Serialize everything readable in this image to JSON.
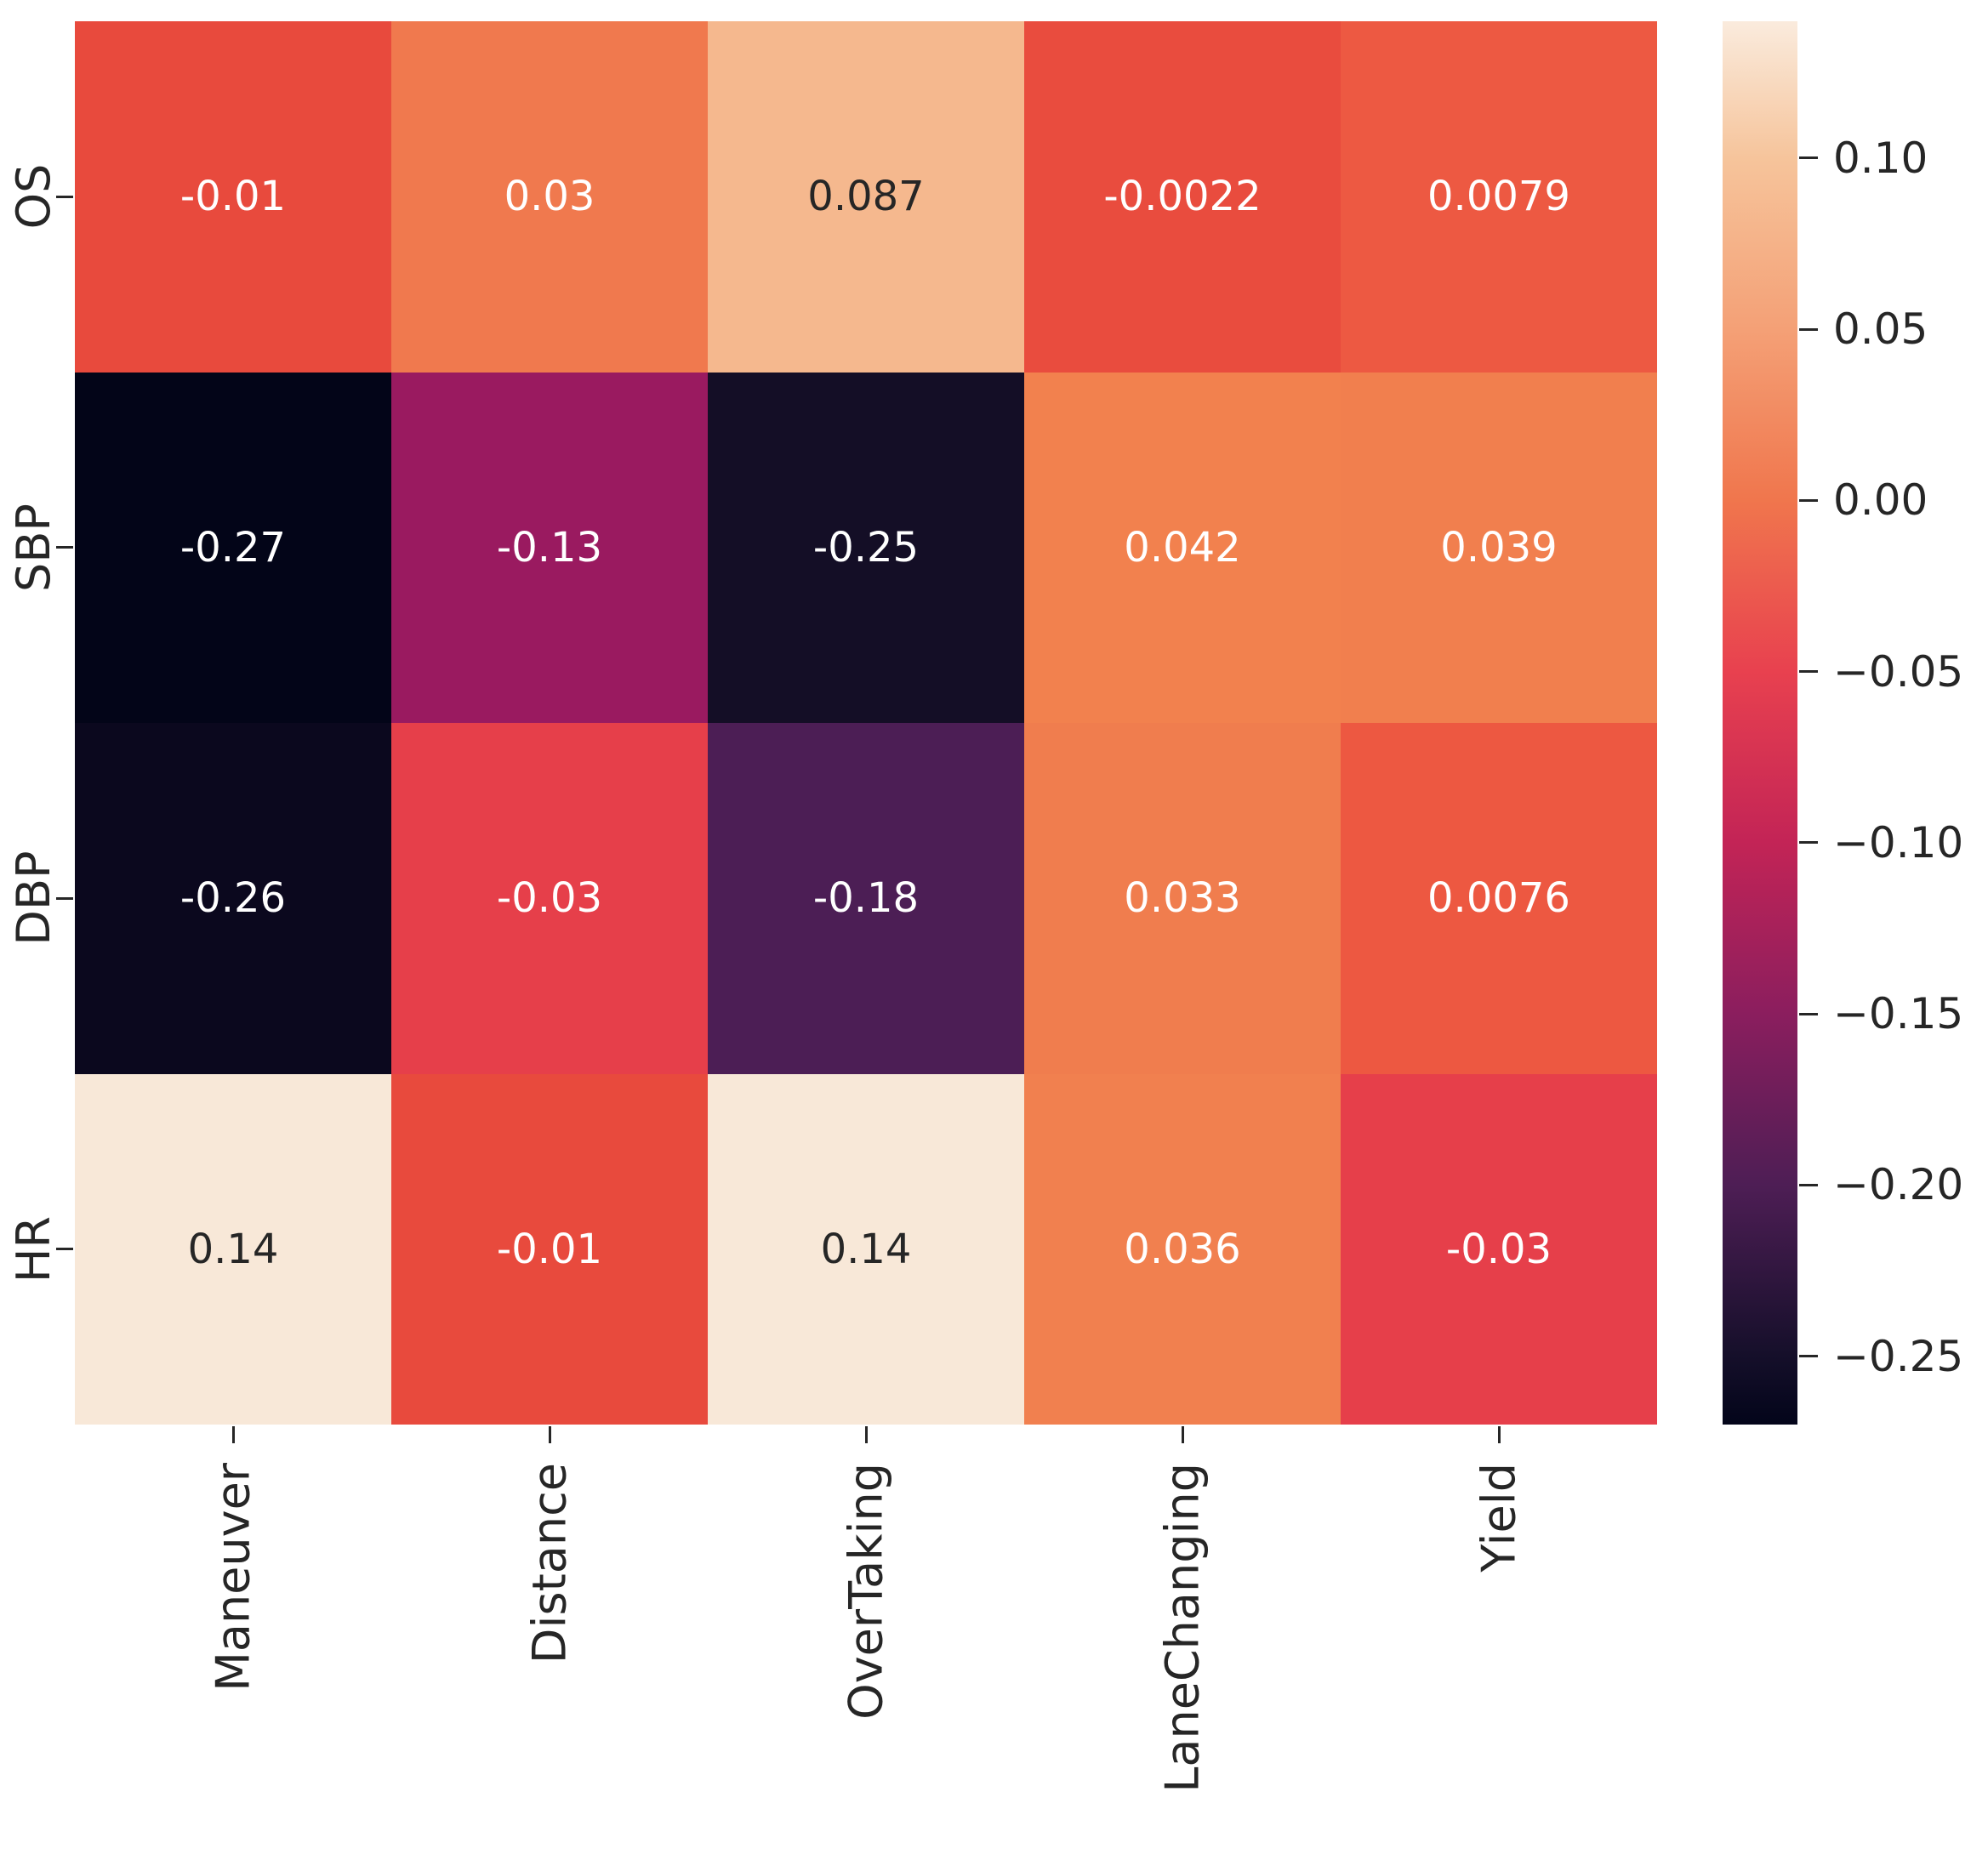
{
  "chart_data": {
    "type": "heatmap",
    "colormap": "rocket",
    "rows": [
      "OS",
      "SBP",
      "DBP",
      "HR"
    ],
    "columns": [
      "Maneuver",
      "Distance",
      "OverTaking",
      "LaneChanging",
      "Yield"
    ],
    "values": [
      [
        -0.01,
        0.03,
        0.087,
        -0.0022,
        0.0079
      ],
      [
        -0.27,
        -0.13,
        -0.25,
        0.042,
        0.039
      ],
      [
        -0.26,
        -0.03,
        -0.18,
        0.033,
        0.0076
      ],
      [
        0.14,
        -0.01,
        0.14,
        0.036,
        -0.03
      ]
    ],
    "cell_labels": [
      [
        "-0.01",
        "0.03",
        "0.087",
        "-0.0022",
        "0.0079"
      ],
      [
        "-0.27",
        "-0.13",
        "-0.25",
        "0.042",
        "0.039"
      ],
      [
        "-0.26",
        "-0.03",
        "-0.18",
        "0.033",
        "0.0076"
      ],
      [
        "0.14",
        "-0.01",
        "0.14",
        "0.036",
        "-0.03"
      ]
    ],
    "cell_colors": [
      [
        "#E84A3D",
        "#F0794E",
        "#F5B88E",
        "#E94C3E",
        "#ED5942"
      ],
      [
        "#030518",
        "#9A1A60",
        "#140E26",
        "#F2814E",
        "#F17F4E"
      ],
      [
        "#0B081E",
        "#E63F4A",
        "#4C1E55",
        "#F07D4E",
        "#ED5841"
      ],
      [
        "#F8E8D8",
        "#E84A3D",
        "#F8E8D8",
        "#F1804F",
        "#E63F4A"
      ]
    ],
    "cell_text_colors": [
      [
        "#FFFFFF",
        "#FFFFFF",
        "#262626",
        "#FFFFFF",
        "#FFFFFF"
      ],
      [
        "#FFFFFF",
        "#FFFFFF",
        "#FFFFFF",
        "#FFFFFF",
        "#FFFFFF"
      ],
      [
        "#FFFFFF",
        "#FFFFFF",
        "#FFFFFF",
        "#FFFFFF",
        "#FFFFFF"
      ],
      [
        "#262626",
        "#FFFFFF",
        "#262626",
        "#FFFFFF",
        "#FFFFFF"
      ]
    ],
    "colorbar": {
      "vmin": -0.27,
      "vmax": 0.14,
      "tick_values": [
        0.1,
        0.05,
        0.0,
        -0.05,
        -0.1,
        -0.15,
        -0.2,
        -0.25
      ],
      "tick_labels": [
        "0.10",
        "0.05",
        "0.00",
        "−0.05",
        "−0.10",
        "−0.15",
        "−0.20",
        "−0.25"
      ],
      "gradient_stops": [
        {
          "pos": 0.0,
          "color": "#FAEBDD"
        },
        {
          "pos": 9.8,
          "color": "#F6C49B"
        },
        {
          "pos": 22.0,
          "color": "#F4A076"
        },
        {
          "pos": 34.1,
          "color": "#F0764D"
        },
        {
          "pos": 46.3,
          "color": "#E8414F"
        },
        {
          "pos": 58.5,
          "color": "#C32456"
        },
        {
          "pos": 70.7,
          "color": "#8B1E5E"
        },
        {
          "pos": 82.9,
          "color": "#4E1E55"
        },
        {
          "pos": 95.1,
          "color": "#150F2A"
        },
        {
          "pos": 100.0,
          "color": "#03051A"
        }
      ]
    },
    "axis_text_color": "#262626",
    "grid": false,
    "legend_position": "right-colorbar"
  }
}
